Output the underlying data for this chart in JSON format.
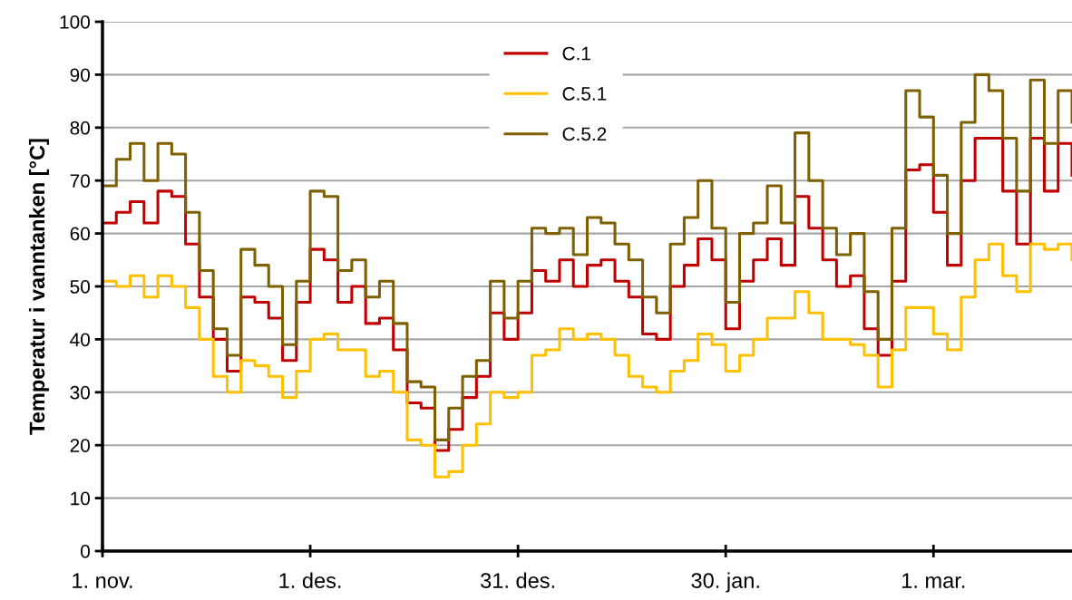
{
  "chart_data": {
    "type": "step",
    "ylabel": "Temperatur i vanntanken [°C]",
    "categories": [
      "1. nov.",
      null,
      null,
      null,
      null,
      null,
      null,
      null,
      null,
      null,
      null,
      null,
      null,
      null,
      null,
      "1. des.",
      null,
      null,
      null,
      null,
      null,
      null,
      null,
      null,
      null,
      null,
      null,
      null,
      null,
      null,
      "31. des.",
      null,
      null,
      null,
      null,
      null,
      null,
      null,
      null,
      null,
      null,
      null,
      null,
      null,
      null,
      "30. jan.",
      null,
      null,
      null,
      null,
      null,
      null,
      null,
      null,
      null,
      null,
      null,
      null,
      null,
      null,
      "1. mar.",
      null,
      null,
      null,
      null,
      null,
      null,
      null,
      null,
      null,
      null
    ],
    "series": [
      {
        "name": "C.1",
        "color": "#c00000",
        "values": [
          62,
          64,
          66,
          62,
          68,
          67,
          58,
          48,
          40,
          34,
          48,
          47,
          44,
          36,
          47,
          57,
          55,
          47,
          50,
          43,
          44,
          38,
          28,
          27,
          19,
          23,
          29,
          33,
          45,
          40,
          45,
          53,
          51,
          55,
          50,
          54,
          55,
          51,
          48,
          41,
          40,
          50,
          54,
          59,
          55,
          42,
          51,
          55,
          59,
          54,
          67,
          61,
          55,
          50,
          52,
          42,
          37,
          51,
          72,
          73,
          64,
          54,
          70,
          78,
          78,
          68,
          58,
          78,
          68,
          77,
          71
        ]
      },
      {
        "name": "C.5.1",
        "color": "#ffc000",
        "values": [
          51,
          50,
          52,
          48,
          52,
          50,
          46,
          40,
          33,
          30,
          36,
          35,
          33,
          29,
          34,
          40,
          41,
          38,
          38,
          33,
          34,
          30,
          21,
          20,
          14,
          15,
          20,
          24,
          30,
          29,
          30,
          37,
          38,
          42,
          40,
          41,
          40,
          37,
          33,
          31,
          30,
          34,
          36,
          41,
          39,
          34,
          37,
          40,
          44,
          44,
          49,
          45,
          40,
          40,
          39,
          37,
          31,
          38,
          46,
          46,
          41,
          38,
          48,
          55,
          58,
          52,
          49,
          58,
          57,
          58,
          55
        ]
      },
      {
        "name": "C.5.2",
        "color": "#7f6000",
        "values": [
          69,
          74,
          77,
          70,
          77,
          75,
          64,
          53,
          42,
          37,
          57,
          54,
          50,
          39,
          51,
          68,
          67,
          53,
          55,
          48,
          51,
          43,
          32,
          31,
          21,
          27,
          33,
          36,
          51,
          44,
          51,
          61,
          60,
          61,
          56,
          63,
          62,
          58,
          55,
          48,
          45,
          58,
          63,
          70,
          61,
          47,
          60,
          62,
          69,
          62,
          79,
          70,
          61,
          56,
          60,
          49,
          40,
          61,
          87,
          82,
          71,
          60,
          81,
          90,
          87,
          78,
          68,
          89,
          77,
          87,
          81
        ]
      }
    ],
    "ylim": [
      0,
      100
    ],
    "yticks": [
      0,
      10,
      20,
      30,
      40,
      50,
      60,
      70,
      80,
      90,
      100
    ],
    "grid": "y",
    "legend": "top",
    "line_style": "solid",
    "marker": "none"
  }
}
